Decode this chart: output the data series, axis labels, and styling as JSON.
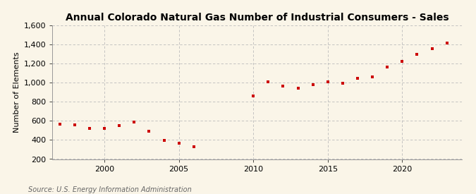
{
  "title": "Annual Colorado Natural Gas Number of Industrial Consumers - Sales",
  "ylabel": "Number of Elements",
  "source": "Source: U.S. Energy Information Administration",
  "background_color": "#faf5e8",
  "marker_color": "#cc0000",
  "years": [
    1997,
    1998,
    1999,
    2000,
    2001,
    2002,
    2003,
    2004,
    2005,
    2006,
    2010,
    2011,
    2012,
    2013,
    2014,
    2015,
    2016,
    2017,
    2018,
    2019,
    2020,
    2021,
    2022,
    2023
  ],
  "values": [
    565,
    555,
    520,
    520,
    550,
    590,
    490,
    395,
    365,
    330,
    860,
    1005,
    960,
    945,
    980,
    1005,
    990,
    1045,
    1060,
    1160,
    1225,
    1295,
    1355,
    1415
  ],
  "ylim": [
    200,
    1600
  ],
  "xlim": [
    1996.5,
    2024
  ],
  "yticks": [
    200,
    400,
    600,
    800,
    1000,
    1200,
    1400,
    1600
  ],
  "xticks": [
    2000,
    2005,
    2010,
    2015,
    2020
  ],
  "grid_color": "#bbbbbb",
  "title_fontsize": 10,
  "axis_fontsize": 8,
  "tick_fontsize": 8,
  "source_fontsize": 7
}
